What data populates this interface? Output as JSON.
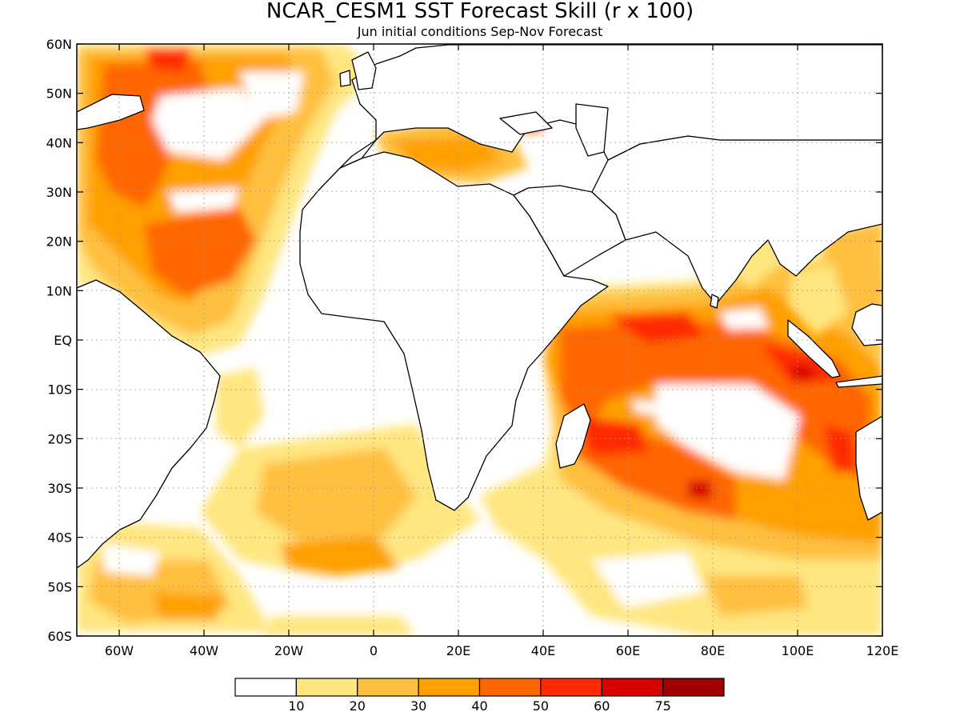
{
  "title": "NCAR_CESM1 SST Forecast Skill (r x 100)",
  "subtitle": "Jun initial conditions  Sep-Nov Forecast",
  "lat_labels": [
    "60N",
    "50N",
    "40N",
    "30N",
    "20N",
    "10N",
    "EQ",
    "10S",
    "20S",
    "30S",
    "40S",
    "50S",
    "60S"
  ],
  "lon_labels": [
    "60W",
    "40W",
    "20W",
    "0",
    "20E",
    "40E",
    "60E",
    "80E",
    "100E",
    "120E"
  ],
  "colorbar": {
    "levels": [
      "10",
      "20",
      "30",
      "40",
      "50",
      "60",
      "75"
    ],
    "colors": [
      "#ffffff",
      "#ffe680",
      "#ffc040",
      "#ffa000",
      "#ff6600",
      "#ff2a00",
      "#d80000",
      "#a00000"
    ]
  }
}
